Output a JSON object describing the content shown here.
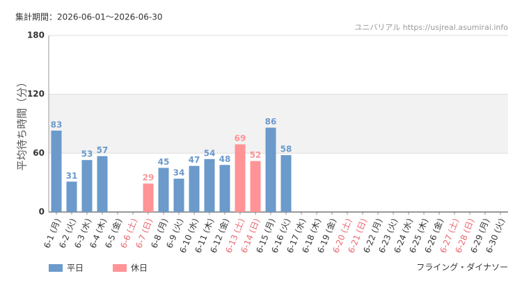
{
  "chart_data": {
    "type": "bar",
    "period": "集計期間：2026-06-01～2026-06-30",
    "source": "ユニバリアル  https://usjreal.asumirai.info",
    "ylabel": "平均待ち時間（分）",
    "attraction": "フライング・ダイナソー",
    "categories": [
      "6-1 (月)",
      "6-2 (火)",
      "6-3 (水)",
      "6-4 (木)",
      "6-5 (金)",
      "6-6 (土)",
      "6-7 (日)",
      "6-8 (月)",
      "6-9 (火)",
      "6-10 (水)",
      "6-11 (木)",
      "6-12 (金)",
      "6-13 (土)",
      "6-14 (日)",
      "6-15 (月)",
      "6-16 (火)",
      "6-17 (水)",
      "6-18 (木)",
      "6-19 (金)",
      "6-20 (土)",
      "6-21 (日)",
      "6-22 (月)",
      "6-23 (火)",
      "6-24 (水)",
      "6-25 (木)",
      "6-26 (金)",
      "6-27 (土)",
      "6-28 (日)",
      "6-29 (月)",
      "6-30 (火)"
    ],
    "category_label_colors": [
      "#333",
      "#333",
      "#333",
      "#333",
      "#333",
      "#e8666e",
      "#e8666e",
      "#333",
      "#333",
      "#333",
      "#333",
      "#333",
      "#e8666e",
      "#e8666e",
      "#333",
      "#333",
      "#333",
      "#333",
      "#333",
      "#e8666e",
      "#e8666e",
      "#333",
      "#333",
      "#333",
      "#333",
      "#333",
      "#e8666e",
      "#e8666e",
      "#333",
      "#333"
    ],
    "series": [
      {
        "name": "平日",
        "color": "#6b9acb",
        "values": [
          83,
          31,
          53,
          57,
          null,
          null,
          null,
          45,
          34,
          47,
          54,
          48,
          null,
          null,
          86,
          58,
          null,
          null,
          null,
          null,
          null,
          null,
          null,
          null,
          null,
          null,
          null,
          null,
          null,
          null
        ]
      },
      {
        "name": "休日",
        "color": "#ff9396",
        "values": [
          null,
          null,
          null,
          null,
          null,
          null,
          29,
          null,
          null,
          null,
          null,
          null,
          69,
          52,
          null,
          null,
          null,
          null,
          null,
          null,
          null,
          null,
          null,
          null,
          null,
          null,
          null,
          null,
          null,
          null
        ]
      }
    ],
    "ylim": [
      0,
      180
    ],
    "yticks": [
      0,
      60,
      120,
      180
    ],
    "shaded_band": [
      60,
      120
    ]
  }
}
